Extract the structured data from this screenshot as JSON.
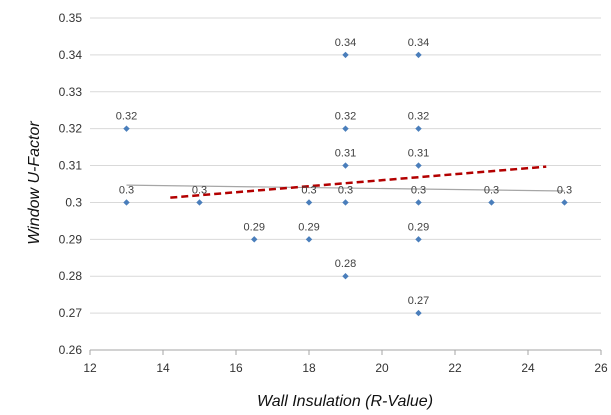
{
  "chart_data": {
    "type": "scatter",
    "title": "",
    "xlabel": "Wall Insulation (R-Value)",
    "ylabel": "Window U-Factor",
    "xlim": [
      12,
      26
    ],
    "ylim": [
      0.26,
      0.35
    ],
    "xticks": [
      "12",
      "14",
      "16",
      "18",
      "20",
      "22",
      "24",
      "26"
    ],
    "yticks": [
      "0.26",
      "0.27",
      "0.28",
      "0.29",
      "0.3",
      "0.31",
      "0.32",
      "0.33",
      "0.34",
      "0.35"
    ],
    "grid": {
      "x": false,
      "y": true
    },
    "legend": "none",
    "series": [
      {
        "points": [
          {
            "x": 13,
            "y": 0.32,
            "label": "0.32"
          },
          {
            "x": 13,
            "y": 0.3,
            "label": "0.3"
          },
          {
            "x": 15,
            "y": 0.3,
            "label": "0.3"
          },
          {
            "x": 16.5,
            "y": 0.29,
            "label": "0.29"
          },
          {
            "x": 18,
            "y": 0.3,
            "label": "0.3"
          },
          {
            "x": 18,
            "y": 0.29,
            "label": "0.29"
          },
          {
            "x": 19,
            "y": 0.34,
            "label": "0.34"
          },
          {
            "x": 19,
            "y": 0.32,
            "label": "0.32"
          },
          {
            "x": 19,
            "y": 0.31,
            "label": "0.31"
          },
          {
            "x": 19,
            "y": 0.3,
            "label": "0.3"
          },
          {
            "x": 19,
            "y": 0.28,
            "label": "0.28"
          },
          {
            "x": 21,
            "y": 0.34,
            "label": "0.34"
          },
          {
            "x": 21,
            "y": 0.32,
            "label": "0.32"
          },
          {
            "x": 21,
            "y": 0.31,
            "label": "0.31"
          },
          {
            "x": 21,
            "y": 0.3,
            "label": "0.3"
          },
          {
            "x": 21,
            "y": 0.29,
            "label": "0.29"
          },
          {
            "x": 21,
            "y": 0.27,
            "label": "0.27"
          },
          {
            "x": 23,
            "y": 0.3,
            "label": "0.3"
          },
          {
            "x": 25,
            "y": 0.3,
            "label": "0.3"
          }
        ]
      }
    ],
    "trendlines": [
      {
        "style": "solid-gray",
        "x": [
          13,
          25
        ],
        "y": [
          0.3047,
          0.3031
        ]
      },
      {
        "style": "dashed-red",
        "x": [
          14.2,
          24.5
        ],
        "y": [
          0.3013,
          0.3097
        ]
      }
    ],
    "colors": {
      "marker": "#4a7ebb",
      "gray_trend": "#a6a6a6",
      "red_trend": "#b30000",
      "gridline": "#d9d9d9",
      "axis": "#a6a6a6"
    }
  }
}
